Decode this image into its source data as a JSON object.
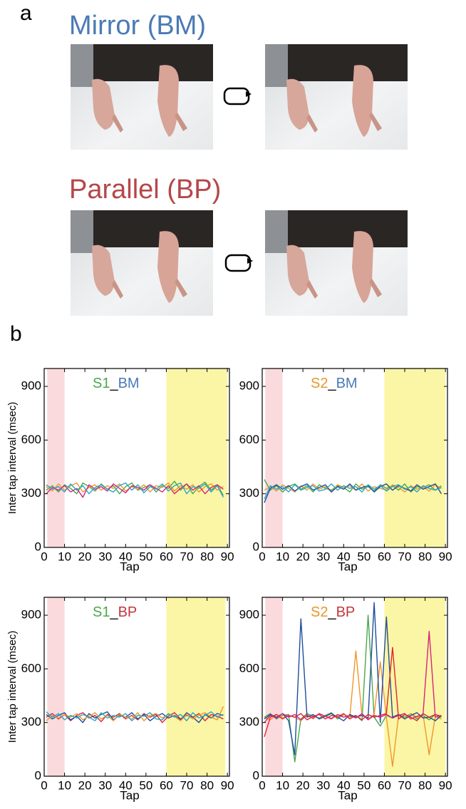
{
  "panel_a": {
    "label": "a",
    "rows": [
      {
        "title": "Mirror (BM)",
        "color": "#4a7ab5"
      },
      {
        "title": "Parallel (BP)",
        "color": "#b5474a"
      }
    ]
  },
  "panel_b": {
    "label": "b"
  },
  "chart_data": [
    {
      "type": "line",
      "title_parts": [
        "S1",
        "_",
        "BM"
      ],
      "title_colors": [
        "#4aa84a",
        "#000000",
        "#4a7ab5"
      ],
      "ylabel": "Inter tap interval (msec)",
      "xlabel": "Tap",
      "xlim": [
        0,
        91
      ],
      "ylim": [
        0,
        1000
      ],
      "xticks": [
        0,
        10,
        20,
        30,
        40,
        50,
        60,
        70,
        80,
        90
      ],
      "yticks": [
        0,
        300,
        600,
        900
      ],
      "shaded_regions": [
        {
          "range": [
            1.5,
            10
          ],
          "color": "#fadadd"
        },
        {
          "range": [
            60,
            90
          ],
          "color": "#fbf6a6"
        }
      ],
      "x": [
        1,
        4,
        7,
        10,
        13,
        16,
        19,
        22,
        25,
        28,
        31,
        34,
        37,
        40,
        43,
        46,
        49,
        52,
        55,
        58,
        61,
        64,
        67,
        70,
        73,
        76,
        79,
        82,
        85,
        88
      ],
      "series": [
        {
          "color": "#4aa84a",
          "values": [
            320,
            345,
            310,
            350,
            330,
            300,
            360,
            340,
            315,
            355,
            325,
            345,
            300,
            340,
            360,
            320,
            335,
            350,
            310,
            345,
            330,
            370,
            320,
            355,
            300,
            340,
            365,
            320,
            350,
            290
          ]
        },
        {
          "color": "#f0962a",
          "values": [
            340,
            315,
            355,
            320,
            345,
            360,
            310,
            335,
            350,
            320,
            345,
            330,
            355,
            315,
            340,
            325,
            350,
            310,
            345,
            335,
            360,
            315,
            345,
            325,
            350,
            310,
            340,
            355,
            320,
            340
          ]
        },
        {
          "color": "#d6247e",
          "values": [
            300,
            335,
            320,
            345,
            310,
            330,
            280,
            350,
            325,
            340,
            315,
            355,
            330,
            305,
            345,
            335,
            320,
            350,
            330,
            310,
            345,
            300,
            330,
            355,
            320,
            345,
            300,
            335,
            350,
            325
          ]
        },
        {
          "color": "#2aa7c9",
          "values": [
            350,
            325,
            340,
            310,
            355,
            320,
            345,
            300,
            335,
            350,
            325,
            310,
            345,
            360,
            320,
            350,
            305,
            340,
            325,
            355,
            315,
            345,
            360,
            300,
            340,
            330,
            355,
            310,
            345,
            280
          ]
        }
      ]
    },
    {
      "type": "line",
      "title_parts": [
        "S2",
        "_",
        "BM"
      ],
      "title_colors": [
        "#e8962a",
        "#000000",
        "#4a7ab5"
      ],
      "xlabel": "Tap",
      "xlim": [
        0,
        91
      ],
      "ylim": [
        0,
        1000
      ],
      "xticks": [
        0,
        10,
        20,
        30,
        40,
        50,
        60,
        70,
        80,
        90
      ],
      "yticks": [
        0,
        300,
        600,
        900
      ],
      "shaded_regions": [
        {
          "range": [
            1.5,
            10
          ],
          "color": "#fadadd"
        },
        {
          "range": [
            60,
            90
          ],
          "color": "#fbf6a6"
        }
      ],
      "x": [
        1,
        4,
        7,
        10,
        13,
        16,
        19,
        22,
        25,
        28,
        31,
        34,
        37,
        40,
        43,
        46,
        49,
        52,
        55,
        58,
        61,
        64,
        67,
        70,
        73,
        76,
        79,
        82,
        85,
        88
      ],
      "series": [
        {
          "color": "#4aa84a",
          "values": [
            380,
            320,
            345,
            310,
            340,
            355,
            325,
            345,
            310,
            350,
            330,
            320,
            345,
            335,
            310,
            355,
            325,
            340,
            315,
            350,
            330,
            345,
            320,
            355,
            310,
            340,
            335,
            350,
            320,
            345
          ]
        },
        {
          "color": "#f0962a",
          "values": [
            320,
            340,
            315,
            350,
            330,
            310,
            345,
            320,
            355,
            325,
            340,
            310,
            350,
            335,
            345,
            320,
            355,
            315,
            340,
            330,
            320,
            350,
            335,
            310,
            345,
            325,
            340,
            315,
            350,
            330
          ]
        },
        {
          "color": "#1f4e9c",
          "values": [
            250,
            330,
            350,
            325,
            345,
            315,
            340,
            355,
            320,
            335,
            350,
            310,
            340,
            325,
            355,
            320,
            335,
            345,
            310,
            340,
            355,
            320,
            345,
            330,
            315,
            350,
            325,
            340,
            355,
            300
          ]
        },
        {
          "color": "#2aa7c9",
          "values": [
            270,
            345,
            325,
            340,
            310,
            350,
            320,
            335,
            345,
            315,
            325,
            355,
            320,
            345,
            330,
            340,
            310,
            350,
            325,
            345,
            315,
            340,
            350,
            325,
            340,
            310,
            345,
            330,
            320,
            335
          ]
        }
      ]
    },
    {
      "type": "line",
      "title_parts": [
        "S1",
        "_",
        "BP"
      ],
      "title_colors": [
        "#4aa84a",
        "#000000",
        "#c0393d"
      ],
      "ylabel": "Inter tap interval (msec)",
      "xlabel": "Tap",
      "xlim": [
        0,
        91
      ],
      "ylim": [
        0,
        1000
      ],
      "xticks": [
        0,
        10,
        20,
        30,
        40,
        50,
        60,
        70,
        80,
        90
      ],
      "yticks": [
        0,
        300,
        600,
        900
      ],
      "shaded_regions": [
        {
          "range": [
            1.5,
            10
          ],
          "color": "#fadadd"
        },
        {
          "range": [
            60,
            89
          ],
          "color": "#fbf6a6"
        }
      ],
      "x": [
        1,
        4,
        7,
        10,
        13,
        16,
        19,
        22,
        25,
        28,
        31,
        34,
        37,
        40,
        43,
        46,
        49,
        52,
        55,
        58,
        61,
        64,
        67,
        70,
        73,
        76,
        79,
        82,
        85,
        88
      ],
      "series": [
        {
          "color": "#e0262b",
          "values": [
            330,
            350,
            320,
            345,
            310,
            340,
            355,
            325,
            340,
            305,
            345,
            330,
            350,
            320,
            340,
            315,
            350,
            330,
            345,
            300,
            335,
            355,
            320,
            340,
            330,
            350,
            310,
            345,
            335,
            320
          ]
        },
        {
          "color": "#1f4e9c",
          "values": [
            345,
            320,
            340,
            355,
            315,
            335,
            300,
            350,
            325,
            345,
            360,
            315,
            340,
            330,
            355,
            320,
            345,
            310,
            335,
            350,
            325,
            340,
            315,
            355,
            330,
            300,
            345,
            325,
            350,
            340
          ]
        },
        {
          "color": "#f0962a",
          "values": [
            310,
            340,
            325,
            345,
            330,
            350,
            315,
            335,
            355,
            320,
            340,
            310,
            345,
            330,
            320,
            355,
            310,
            340,
            350,
            325,
            345,
            335,
            310,
            345,
            320,
            340,
            355,
            330,
            315,
            390
          ]
        },
        {
          "color": "#2aa7c9",
          "values": [
            360,
            330,
            350,
            315,
            340,
            325,
            345,
            330,
            310,
            355,
            325,
            340,
            330,
            350,
            310,
            340,
            335,
            355,
            320,
            315,
            350,
            330,
            345,
            310,
            355,
            325,
            340,
            360,
            330,
            345
          ]
        }
      ]
    },
    {
      "type": "line",
      "title_parts": [
        "S2",
        "_",
        "BP"
      ],
      "title_colors": [
        "#e8962a",
        "#000000",
        "#c0393d"
      ],
      "xlabel": "Tap",
      "xlim": [
        0,
        91
      ],
      "ylim": [
        0,
        1000
      ],
      "xticks": [
        0,
        10,
        20,
        30,
        40,
        50,
        60,
        70,
        80,
        90
      ],
      "yticks": [
        0,
        300,
        600,
        900
      ],
      "shaded_regions": [
        {
          "range": [
            1.5,
            10
          ],
          "color": "#fadadd"
        },
        {
          "range": [
            60,
            90
          ],
          "color": "#fbf6a6"
        }
      ],
      "x": [
        1,
        4,
        7,
        10,
        13,
        16,
        19,
        22,
        25,
        28,
        31,
        34,
        37,
        40,
        43,
        46,
        49,
        52,
        55,
        58,
        61,
        64,
        67,
        70,
        73,
        76,
        79,
        82,
        85,
        88
      ],
      "series": [
        {
          "color": "#4aa84a",
          "values": [
            330,
            350,
            320,
            340,
            345,
            80,
            320,
            350,
            335,
            325,
            340,
            355,
            320,
            345,
            330,
            340,
            310,
            900,
            330,
            280,
            340,
            325,
            345,
            330,
            350,
            320,
            340,
            315,
            345,
            330
          ]
        },
        {
          "color": "#f0962a",
          "values": [
            330,
            315,
            345,
            325,
            340,
            330,
            310,
            345,
            320,
            350,
            335,
            325,
            340,
            345,
            330,
            700,
            340,
            320,
            345,
            640,
            330,
            55,
            340,
            320,
            350,
            330,
            345,
            120,
            335,
            320
          ]
        },
        {
          "color": "#1f4e9c",
          "values": [
            320,
            345,
            330,
            350,
            310,
            120,
            880,
            330,
            345,
            320,
            335,
            350,
            330,
            310,
            345,
            330,
            340,
            325,
            970,
            300,
            890,
            330,
            345,
            320,
            340,
            355,
            325,
            330,
            310,
            340
          ]
        },
        {
          "color": "#e0262b",
          "values": [
            220,
            330,
            345,
            320,
            340,
            330,
            350,
            315,
            335,
            345,
            320,
            340,
            330,
            350,
            320,
            340,
            315,
            345,
            330,
            340,
            350,
            720,
            320,
            345,
            330,
            310,
            350,
            330,
            345,
            335
          ]
        },
        {
          "color": "#d6247e",
          "values": [
            300,
            340,
            325,
            350,
            330,
            345,
            315,
            340,
            325,
            350,
            335,
            320,
            345,
            330,
            340,
            325,
            350,
            315,
            340,
            330,
            345,
            325,
            340,
            350,
            320,
            335,
            345,
            810,
            330,
            340
          ]
        }
      ]
    }
  ]
}
